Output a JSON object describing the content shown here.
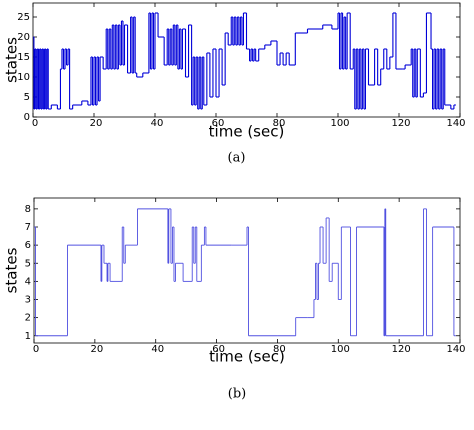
{
  "chart_data": [
    {
      "type": "line",
      "step": true,
      "xlabel": "time (sec)",
      "ylabel": "states",
      "caption": "(a)",
      "xlim": [
        0,
        140
      ],
      "ylim": [
        0,
        28.5
      ],
      "xticks": [
        0,
        20,
        40,
        60,
        80,
        100,
        120,
        140
      ],
      "yticks": [
        0,
        5,
        10,
        15,
        20,
        25
      ],
      "series": [
        {
          "color": "#0000d8",
          "x": [
            0,
            0.3,
            0.6,
            1,
            1.4,
            1.8,
            2.2,
            2.6,
            3,
            3.4,
            3.8,
            4.2,
            4.6,
            5,
            6,
            8,
            9,
            9.5,
            10,
            10.5,
            11,
            11.5,
            12,
            13,
            16,
            18,
            19,
            19.5,
            20,
            20.5,
            21,
            21.5,
            22,
            23,
            24,
            24.5,
            25,
            25.5,
            26,
            26.5,
            27,
            27.5,
            28,
            28.5,
            29,
            29.5,
            30,
            31,
            32,
            32.5,
            33,
            33.5,
            34,
            36,
            38,
            38.5,
            39,
            39.5,
            40,
            41,
            43,
            44,
            44.5,
            45,
            45.5,
            46,
            46.5,
            47,
            47.5,
            48,
            48.5,
            49,
            50,
            51,
            52,
            52.5,
            53,
            53.5,
            54,
            54.5,
            55,
            55.5,
            56,
            57,
            58,
            59,
            60,
            61,
            62,
            63,
            64,
            65,
            65.5,
            66,
            66.5,
            67,
            67.5,
            68,
            68.5,
            69,
            70,
            71,
            71.5,
            72,
            72.5,
            73,
            74,
            76,
            78,
            80,
            81,
            82,
            83,
            84,
            86,
            90,
            95,
            98,
            100,
            100.5,
            101,
            101.5,
            102,
            102.5,
            103,
            104,
            105,
            105.5,
            106,
            106.5,
            107,
            107.5,
            108,
            108.5,
            109,
            110,
            112,
            113,
            114,
            115,
            116,
            117,
            118,
            119,
            121,
            122,
            124,
            124.5,
            125,
            125.5,
            126,
            127,
            128,
            129,
            130.5,
            131,
            131.5,
            132,
            132.5,
            133,
            133.5,
            134,
            134.5,
            135,
            137,
            138
          ],
          "y": [
            20,
            2,
            17,
            2,
            17,
            2,
            17,
            2,
            17,
            2,
            17,
            2,
            17,
            2,
            3,
            2,
            12,
            17,
            12,
            17,
            13,
            17,
            2,
            3,
            4,
            3,
            15,
            3,
            15,
            3,
            15,
            4,
            15,
            12,
            22,
            12,
            22,
            12,
            23,
            12,
            23,
            12,
            23,
            13,
            24,
            13,
            23,
            11,
            25,
            11,
            25,
            11,
            10,
            11,
            26,
            12,
            26,
            12,
            26,
            20,
            13,
            22,
            13,
            22,
            13,
            23,
            13,
            23,
            12,
            22,
            12,
            22,
            10,
            23,
            3,
            15,
            3,
            15,
            2,
            15,
            2,
            15,
            3,
            16,
            5,
            17,
            5,
            17,
            8,
            21,
            18,
            25,
            18,
            25,
            18,
            25,
            18,
            25,
            18,
            26,
            17,
            14,
            17,
            14,
            17,
            14,
            17,
            18,
            19,
            13,
            16,
            13,
            16,
            13,
            21,
            22,
            23,
            22,
            26,
            12,
            26,
            12,
            25,
            12,
            26,
            12,
            17,
            2,
            17,
            2,
            17,
            2,
            17,
            2,
            17,
            8,
            17,
            8,
            12,
            17,
            12,
            15,
            26,
            12,
            12,
            13,
            17,
            5,
            17,
            5,
            17,
            5,
            6,
            26,
            17,
            2,
            17,
            2,
            17,
            2,
            17,
            2,
            17,
            3,
            2,
            3
          ]
        }
      ]
    },
    {
      "type": "line",
      "step": true,
      "xlabel": "time (sec)",
      "ylabel": "states",
      "caption": "(b)",
      "xlim": [
        0,
        140
      ],
      "ylim": [
        0.6,
        8.6
      ],
      "xticks": [
        0,
        20,
        40,
        60,
        80,
        100,
        120,
        140
      ],
      "yticks": [
        1,
        2,
        3,
        4,
        5,
        6,
        7,
        8
      ],
      "series": [
        {
          "color": "#5050e0",
          "x": [
            0,
            0.5,
            11,
            22,
            22.3,
            23,
            24,
            24.3,
            25,
            29,
            29.5,
            30,
            34,
            44,
            44.3,
            45,
            45.5,
            46,
            46.5,
            49,
            52,
            52.5,
            53,
            53.5,
            55,
            56,
            56.5,
            65,
            70,
            70.5,
            80,
            86,
            90,
            92,
            92.5,
            93,
            93.5,
            94,
            95,
            96,
            97,
            98,
            100,
            101,
            104,
            106,
            115,
            115.3,
            115.6,
            128,
            129,
            131,
            138
          ],
          "y": [
            7,
            1,
            6,
            4,
            6,
            5,
            4,
            5,
            4,
            7,
            5,
            6,
            8,
            5,
            8,
            5,
            7,
            4,
            5,
            4,
            7,
            5,
            7,
            4,
            6,
            7,
            6,
            6,
            7,
            1,
            1,
            2,
            2,
            3,
            5,
            3,
            5,
            7,
            5,
            7.5,
            4,
            5,
            3,
            7,
            1,
            7,
            1,
            8,
            1,
            8,
            1,
            7,
            1
          ]
        }
      ]
    }
  ]
}
